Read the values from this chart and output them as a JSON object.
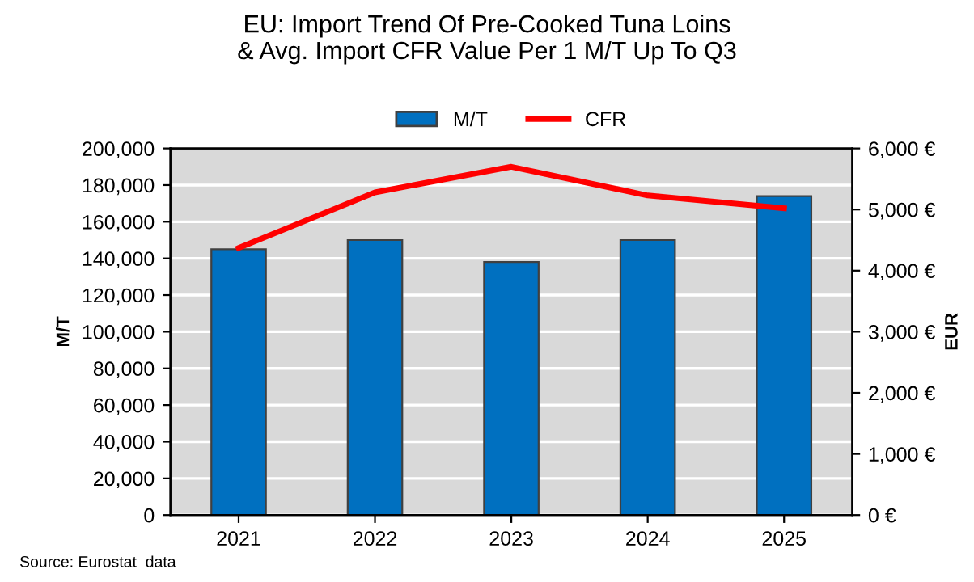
{
  "chart_data": {
    "type": "bar",
    "title": "EU: Import Trend Of Pre-Cooked Tuna Loins\n& Avg. Import CFR Value Per 1 M/T Up To Q3",
    "categories": [
      "2021",
      "2022",
      "2023",
      "2024",
      "2025"
    ],
    "series": [
      {
        "name": "M/T",
        "color": "#0070c0",
        "values": [
          145000,
          150000,
          138000,
          150000,
          174000
        ]
      },
      {
        "name": "CFR",
        "type": "line",
        "axis": "y2",
        "color": "#ff0000",
        "values": [
          4370,
          5280,
          5700,
          5230,
          5020
        ]
      }
    ],
    "ylabel": "M/T",
    "y2label": "EUR",
    "ylim": [
      0,
      200000
    ],
    "yticks": [
      {
        "value": 0,
        "label": "0"
      },
      {
        "value": 20000,
        "label": "20,000"
      },
      {
        "value": 40000,
        "label": "40,000"
      },
      {
        "value": 60000,
        "label": "60,000"
      },
      {
        "value": 80000,
        "label": "80,000"
      },
      {
        "value": 100000,
        "label": "100,000"
      },
      {
        "value": 120000,
        "label": "120,000"
      },
      {
        "value": 140000,
        "label": "140,000"
      },
      {
        "value": 160000,
        "label": "160,000"
      },
      {
        "value": 180000,
        "label": "180,000"
      },
      {
        "value": 200000,
        "label": "200,000"
      }
    ],
    "y2lim": [
      0,
      6000
    ],
    "y2ticks": [
      {
        "value": 0,
        "label": "0 €"
      },
      {
        "value": 1000,
        "label": "1,000 €"
      },
      {
        "value": 2000,
        "label": "2,000 €"
      },
      {
        "value": 3000,
        "label": "3,000 €"
      },
      {
        "value": 4000,
        "label": "4,000 €"
      },
      {
        "value": 5000,
        "label": "5,000 €"
      },
      {
        "value": 6000,
        "label": "6,000 €"
      }
    ],
    "grid": "y",
    "legend": "top",
    "marker": "none",
    "line_style": "solid",
    "annotations": [
      "Source: Eurostat  data"
    ]
  }
}
